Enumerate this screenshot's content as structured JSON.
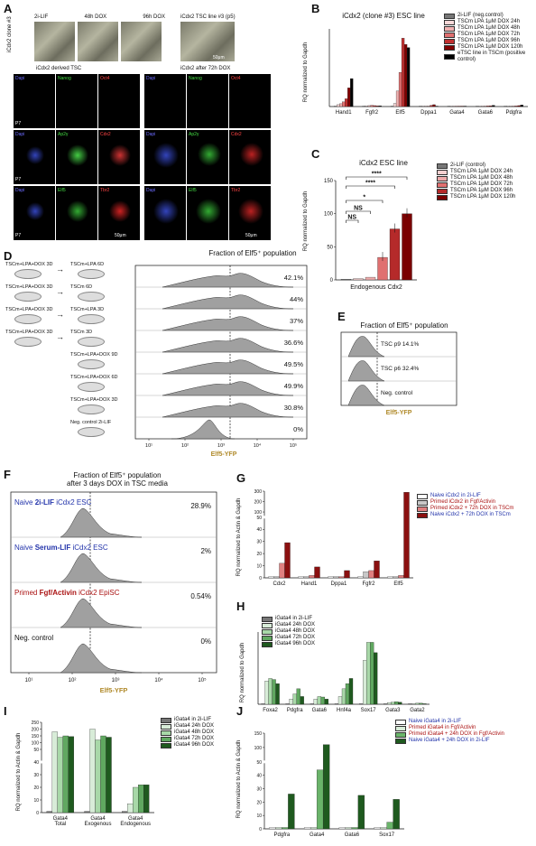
{
  "panels": {
    "A": {
      "letter": "A",
      "clone_label": "iCdx2 clone #3",
      "top_labels": [
        "2i-LIF",
        "48h DOX",
        "96h DOX",
        "iCdx2 TSC line #3 (p5)"
      ],
      "scalebar_top": "50μm",
      "left_header": "iCdx2 derived TSC",
      "right_header": "iCdx2 after 72h DOX",
      "rows": [
        {
          "labels": [
            "Dapi",
            "Nanog",
            "Oct4"
          ],
          "passage": "P7"
        },
        {
          "labels": [
            "Dapi",
            "Ap2γ",
            "Cdx2"
          ],
          "passage": "P7"
        },
        {
          "labels": [
            "Dapi",
            "Elf5",
            "Tbr2"
          ],
          "passage": "P7"
        }
      ],
      "scalebar_bottom": "50μm"
    },
    "B": {
      "letter": "B",
      "legend_colors": [
        "#777777",
        "#f8d8d8",
        "#f0b0b0",
        "#e07070",
        "#c03030",
        "#800000",
        "#000000"
      ]
    },
    "C": {
      "letter": "C"
    },
    "D": {
      "letter": "D",
      "title": "Fraction of Elf5⁺ population",
      "protocols": [
        {
          "from": "TSCm+LPA+DOX 3D",
          "to": "TSCm+LPA 6D"
        },
        {
          "from": "TSCm+LPA+DOX 3D",
          "to": "TSCm 6D"
        },
        {
          "from": "TSCm+LPA+DOX 3D",
          "to": "TSCm+LPA 3D"
        },
        {
          "from": "TSCm+LPA+DOX 3D",
          "to": "TSCm 3D"
        },
        {
          "from": "",
          "to": "TSCm+LPA+DOX 9D"
        },
        {
          "from": "",
          "to": "TSCm+LPA+DOX 6D"
        },
        {
          "from": "",
          "to": "TSCm+LPA+DOX 3D"
        },
        {
          "from": "",
          "to": "Neg. control 2i-LIF"
        }
      ],
      "percents": [
        "42.1%",
        "44%",
        "37%",
        "36.6%",
        "49.5%",
        "49.9%",
        "30.8%",
        "0%"
      ],
      "xticks": [
        "10¹",
        "10²",
        "10³",
        "10⁴",
        "10⁵"
      ],
      "xlabel": "Elf5-YFP"
    },
    "E": {
      "letter": "E",
      "title": "Fraction of Elf5⁺ population",
      "rows": [
        "TSC p9 14.1%",
        "TSC p6 32.4%",
        "Neg. control"
      ],
      "xlabel": "Elf5-YFP"
    },
    "F": {
      "letter": "F",
      "title1": "Fraction of Elf5⁺ population",
      "title2": "after 3 days DOX in TSC media",
      "rows": [
        {
          "pre": "Naive ",
          "bold": "2i-LIF",
          "post": " iCdx2 ESC",
          "pct": "28.9%",
          "color": "#2233aa"
        },
        {
          "pre": "Naive ",
          "bold": "Serum-LIF",
          "post": " iCdx2 ESC",
          "pct": "2%",
          "color": "#2233aa"
        },
        {
          "pre": "Primed ",
          "bold": "Fgf/Activin",
          "post": " iCdx2 EpiSC",
          "pct": "0.54%",
          "color": "#aa1111"
        },
        {
          "pre": "Neg. control",
          "bold": "",
          "post": "",
          "pct": "0%",
          "color": "#111111"
        }
      ],
      "xticks": [
        "10¹",
        "10²",
        "10³",
        "10⁴",
        "10⁵"
      ],
      "xlabel": "Elf5-YFP"
    },
    "G": {
      "letter": "G"
    },
    "H": {
      "letter": "H"
    },
    "I": {
      "letter": "I"
    },
    "J": {
      "letter": "J"
    }
  },
  "chart_data": [
    {
      "id": "B",
      "type": "bar",
      "title": "iCdx2 (clone #3) ESC line",
      "ylabel": "RQ normalized to Gapdh",
      "categories": [
        "Hand1",
        "Fgfr2",
        "Elf5",
        "Dppa1",
        "Gata4",
        "Gata6",
        "Pdgfra"
      ],
      "series": [
        {
          "name": "2i-LIF (neg.control)",
          "values": [
            1,
            1,
            1,
            1,
            1,
            1,
            1
          ]
        },
        {
          "name": "TSCm LPA 1μM DOX 24h",
          "values": [
            60,
            20,
            100,
            2,
            3,
            4,
            5
          ]
        },
        {
          "name": "TSCm LPA 1μM DOX 48h",
          "values": [
            90,
            30,
            500,
            3,
            4,
            6,
            8
          ]
        },
        {
          "name": "TSCm LPA 1μM DOX 72h",
          "values": [
            150,
            40,
            1100,
            10,
            8,
            10,
            15
          ]
        },
        {
          "name": "TSCm LPA 1μM DOX 96h",
          "values": [
            250,
            30,
            2200,
            40,
            10,
            20,
            20
          ]
        },
        {
          "name": "TSCm LPA 1μM DOX 120h",
          "values": [
            600,
            20,
            2000,
            60,
            12,
            25,
            30
          ]
        },
        {
          "name": "eTSC line in TSCm (positive control)",
          "values": [
            900,
            25,
            1900,
            5,
            15,
            40,
            50
          ]
        }
      ],
      "ylim": [
        0,
        2500
      ]
    },
    {
      "id": "C",
      "type": "bar",
      "title": "iCdx2 ESC line",
      "xlabel": "Endogenous Cdx2",
      "ylabel": "RQ normalized to Gapdh",
      "yticks": [
        0,
        50,
        100,
        150
      ],
      "ylim": [
        0,
        150
      ],
      "categories": [
        "2i-LIF (control)",
        "TSCm LPA 1μM DOX 24h",
        "TSCm LPA 1μM DOX 48h",
        "TSCm LPA 1μM DOX 72h",
        "TSCm LPA 1μM DOX 96h",
        "TSCm LPA 1μM DOX 120h"
      ],
      "values": [
        1,
        2,
        4,
        34,
        77,
        100
      ],
      "colors": [
        "#777777",
        "#f5d0d0",
        "#eeaaaa",
        "#e07070",
        "#b52a2a",
        "#7a0000"
      ],
      "sig_labels": [
        "NS",
        "NS",
        "*",
        "****",
        "****"
      ]
    },
    {
      "id": "G",
      "type": "bar",
      "ylabel": "RQ normalized to Actin & Gapdh",
      "categories": [
        "Cdx2",
        "Hand1",
        "Dppa1",
        "Fgfr2",
        "Elf5"
      ],
      "yticks": [
        0,
        10,
        20,
        30,
        40,
        50,
        100,
        200,
        300
      ],
      "series": [
        {
          "name": "Naive iCdx2 in 2i-LIF",
          "color": "#ffffff",
          "text_color": "#2233aa",
          "values": [
            1,
            1,
            1,
            1,
            1
          ]
        },
        {
          "name": "Primed iCdx2 in Fgf/Activin",
          "color": "#c8c8c8",
          "text_color": "#aa1111",
          "values": [
            1,
            1,
            1,
            5,
            1
          ]
        },
        {
          "name": "Primed iCdx2 + 72h DOX in TSCm",
          "color": "#e08080",
          "text_color": "#aa1111",
          "values": [
            12,
            2,
            1,
            6,
            2
          ]
        },
        {
          "name": "Naive iCdx2 + 72h DOX in TSCm",
          "color": "#8b1010",
          "text_color": "#2233aa",
          "values": [
            29,
            9,
            6,
            14,
            290
          ]
        }
      ]
    },
    {
      "id": "H",
      "type": "bar",
      "ylabel": "RQ normalized to Gapdh",
      "categories": [
        "Foxa2",
        "Pdgfra",
        "Gata6",
        "Hnf4a",
        "Sox17",
        "Gata3",
        "Gata2"
      ],
      "series": [
        {
          "name": "iGata4 in 2i-LIF",
          "color": "#777777",
          "values": [
            1,
            1,
            1,
            1,
            1,
            1,
            1
          ]
        },
        {
          "name": "iGata4 24h DOX",
          "color": "#d8ecd8",
          "values": [
            45,
            10,
            10,
            15,
            85,
            3,
            1
          ]
        },
        {
          "name": "iGata4 48h DOX",
          "color": "#a8d8a8",
          "values": [
            50,
            20,
            15,
            30,
            120,
            4,
            2
          ]
        },
        {
          "name": "iGata4 72h DOX",
          "color": "#60a860",
          "values": [
            48,
            30,
            14,
            40,
            120,
            5,
            2
          ]
        },
        {
          "name": "iGata4 96h DOX",
          "color": "#1f5a1f",
          "values": [
            40,
            15,
            10,
            50,
            100,
            4,
            1
          ]
        }
      ],
      "ylim": [
        0,
        140
      ]
    },
    {
      "id": "I",
      "type": "bar",
      "ylabel": "RQ normalized to Actin & Gapdh",
      "categories": [
        "Gata4 Total",
        "Gata4 Exogenous",
        "Gata4 Endogenous"
      ],
      "yticks": [
        0,
        10,
        20,
        30,
        40,
        50,
        100,
        150,
        200,
        250
      ],
      "series": [
        {
          "name": "iGata4 in 2i-LIF",
          "color": "#777777",
          "values": [
            1,
            1,
            1
          ]
        },
        {
          "name": "iGata4 24h DOX",
          "color": "#d8ecd8",
          "values": [
            180,
            200,
            7
          ]
        },
        {
          "name": "iGata4 48h DOX",
          "color": "#a8d8a8",
          "values": [
            140,
            120,
            20
          ]
        },
        {
          "name": "iGata4 72h DOX",
          "color": "#60a860",
          "values": [
            150,
            150,
            22
          ]
        },
        {
          "name": "iGata4 96h DOX",
          "color": "#1f5a1f",
          "values": [
            145,
            140,
            22
          ]
        }
      ]
    },
    {
      "id": "J",
      "type": "bar",
      "ylabel": "RQ normalized to Actin & Gapdh",
      "categories": [
        "Pdgfra",
        "Gata4",
        "Gata6",
        "Sox17"
      ],
      "yticks": [
        0,
        10,
        20,
        30,
        40,
        50,
        100,
        150
      ],
      "series": [
        {
          "name": "Naive iGata4 in 2i-LIF",
          "color": "#ffffff",
          "text_color": "#2233aa",
          "values": [
            1,
            1,
            1,
            1
          ]
        },
        {
          "name": "Primed iGata4 in Fgf/Activin",
          "color": "#d8ecd8",
          "text_color": "#aa1111",
          "values": [
            1,
            1,
            1,
            1
          ]
        },
        {
          "name": "Primed iGata4 + 24h DOX in Fgf/Activin",
          "color": "#6ab46a",
          "text_color": "#aa1111",
          "values": [
            1,
            44,
            1,
            5
          ]
        },
        {
          "name": "Naive iGata4 + 24h DOX in 2i-LIF",
          "color": "#1f5a1f",
          "text_color": "#2233aa",
          "values": [
            26,
            110,
            25,
            22
          ]
        }
      ]
    }
  ]
}
